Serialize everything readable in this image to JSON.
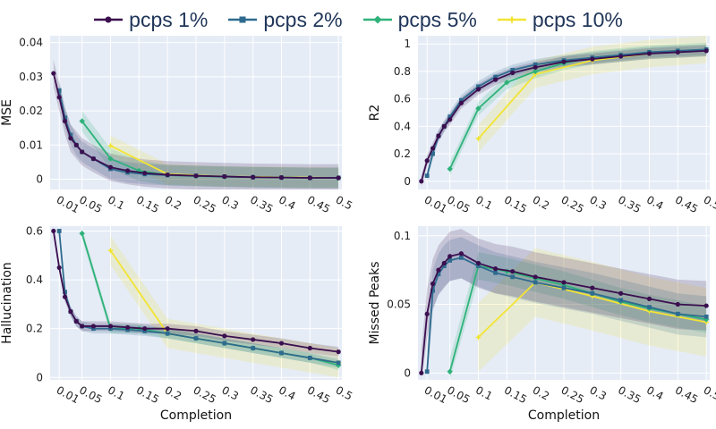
{
  "legend": {
    "items": [
      {
        "label": "pcps 1%",
        "color": "#3b0f4f"
      },
      {
        "label": "pcps 2%",
        "color": "#2f6b8f"
      },
      {
        "label": "pcps 5%",
        "color": "#2fb27a"
      },
      {
        "label": "pcps 10%",
        "color": "#f2e434"
      }
    ]
  },
  "chart_data": [
    {
      "type": "line",
      "ylabel": "MSE",
      "xlabel": "",
      "ylim": [
        -0.003,
        0.042
      ],
      "yticks": [
        "0",
        "0.01",
        "0.02",
        "0.03",
        "0.04"
      ],
      "ytick_values": [
        0,
        0.01,
        0.02,
        0.03,
        0.04
      ],
      "xtick_labels": [
        "0.01",
        "0.05",
        "0.1",
        "0.15",
        "0.2",
        "0.25",
        "0.3",
        "0.35",
        "0.4",
        "0.45",
        "0.5"
      ],
      "xtick_values": [
        0.01,
        0.05,
        0.1,
        0.15,
        0.2,
        0.25,
        0.3,
        0.35,
        0.4,
        0.45,
        0.5
      ],
      "series": [
        {
          "name": "pcps 1%",
          "x": [
            0,
            0.01,
            0.02,
            0.03,
            0.04,
            0.05,
            0.07,
            0.1,
            0.13,
            0.16,
            0.2,
            0.25,
            0.3,
            0.35,
            0.4,
            0.45,
            0.5
          ],
          "values": [
            0.031,
            0.024,
            0.017,
            0.012,
            0.01,
            0.008,
            0.006,
            0.0035,
            0.0025,
            0.0018,
            0.0013,
            0.001,
            0.0008,
            0.0006,
            0.0005,
            0.0004,
            0.0004
          ],
          "band": 0.004
        },
        {
          "name": "pcps 2%",
          "x": [
            0.01,
            0.02,
            0.03,
            0.04,
            0.05,
            0.07,
            0.1,
            0.13,
            0.16,
            0.2,
            0.25,
            0.3,
            0.35,
            0.4,
            0.45,
            0.5
          ],
          "values": [
            0.026,
            0.018,
            0.013,
            0.01,
            0.008,
            0.006,
            0.003,
            0.002,
            0.0015,
            0.0012,
            0.001,
            0.0008,
            0.0006,
            0.0005,
            0.0004,
            0.0004
          ],
          "band": 0.003
        },
        {
          "name": "pcps 5%",
          "x": [
            0.05,
            0.1,
            0.15,
            0.2,
            0.25,
            0.3,
            0.35,
            0.4,
            0.45,
            0.5
          ],
          "values": [
            0.017,
            0.006,
            0.0025,
            0.0012,
            0.0009,
            0.0007,
            0.0006,
            0.0005,
            0.0004,
            0.0004
          ],
          "band": 0.003
        },
        {
          "name": "pcps 10%",
          "x": [
            0.1,
            0.2,
            0.3,
            0.4,
            0.5
          ],
          "values": [
            0.0098,
            0.0015,
            0.0008,
            0.0006,
            0.0004
          ],
          "band": 0.003
        }
      ]
    },
    {
      "type": "line",
      "ylabel": "R2",
      "xlabel": "",
      "ylim": [
        -0.06,
        1.06
      ],
      "yticks": [
        "0",
        "0.2",
        "0.4",
        "0.6",
        "0.8",
        "1"
      ],
      "ytick_values": [
        0,
        0.2,
        0.4,
        0.6,
        0.8,
        1
      ],
      "xtick_labels": [
        "0.01",
        "0.05",
        "0.1",
        "0.15",
        "0.2",
        "0.25",
        "0.3",
        "0.35",
        "0.4",
        "0.45",
        "0.5"
      ],
      "xtick_values": [
        0.01,
        0.05,
        0.1,
        0.15,
        0.2,
        0.25,
        0.3,
        0.35,
        0.4,
        0.45,
        0.5
      ],
      "series": [
        {
          "name": "pcps 1%",
          "x": [
            0,
            0.01,
            0.02,
            0.03,
            0.04,
            0.05,
            0.07,
            0.1,
            0.13,
            0.16,
            0.2,
            0.25,
            0.3,
            0.35,
            0.4,
            0.45,
            0.5
          ],
          "values": [
            0,
            0.15,
            0.24,
            0.33,
            0.4,
            0.45,
            0.57,
            0.67,
            0.74,
            0.79,
            0.83,
            0.87,
            0.89,
            0.91,
            0.93,
            0.94,
            0.95
          ],
          "band": 0.04
        },
        {
          "name": "pcps 2%",
          "x": [
            0.01,
            0.02,
            0.03,
            0.04,
            0.05,
            0.07,
            0.1,
            0.13,
            0.16,
            0.2,
            0.25,
            0.3,
            0.35,
            0.4,
            0.45,
            0.5
          ],
          "values": [
            0.04,
            0.2,
            0.33,
            0.4,
            0.47,
            0.59,
            0.69,
            0.76,
            0.81,
            0.85,
            0.88,
            0.9,
            0.92,
            0.94,
            0.95,
            0.96
          ],
          "band": 0.04
        },
        {
          "name": "pcps 5%",
          "x": [
            0.05,
            0.1,
            0.15,
            0.2,
            0.25,
            0.3,
            0.35,
            0.4,
            0.45,
            0.5
          ],
          "values": [
            0.09,
            0.53,
            0.72,
            0.8,
            0.86,
            0.9,
            0.92,
            0.94,
            0.95,
            0.96
          ],
          "band": 0.05
        },
        {
          "name": "pcps 10%",
          "x": [
            0.1,
            0.2,
            0.3,
            0.4,
            0.5
          ],
          "values": [
            0.31,
            0.78,
            0.88,
            0.93,
            0.96
          ],
          "band": 0.1
        }
      ]
    },
    {
      "type": "line",
      "ylabel": "Hallucination",
      "xlabel": "Completion",
      "ylim": [
        -0.01,
        0.62
      ],
      "yticks": [
        "0",
        "0.2",
        "0.4",
        "0.6"
      ],
      "ytick_values": [
        0,
        0.2,
        0.4,
        0.6
      ],
      "xtick_labels": [
        "0.01",
        "0.05",
        "0.1",
        "0.15",
        "0.2",
        "0.25",
        "0.3",
        "0.35",
        "0.4",
        "0.45",
        "0.5"
      ],
      "xtick_values": [
        0.01,
        0.05,
        0.1,
        0.15,
        0.2,
        0.25,
        0.3,
        0.35,
        0.4,
        0.45,
        0.5
      ],
      "series": [
        {
          "name": "pcps 1%",
          "x": [
            0,
            0.01,
            0.02,
            0.03,
            0.04,
            0.05,
            0.07,
            0.1,
            0.13,
            0.16,
            0.2,
            0.25,
            0.3,
            0.35,
            0.4,
            0.45,
            0.5
          ],
          "values": [
            0.6,
            0.45,
            0.33,
            0.27,
            0.23,
            0.21,
            0.21,
            0.21,
            0.205,
            0.2,
            0.2,
            0.19,
            0.17,
            0.155,
            0.14,
            0.12,
            0.105
          ],
          "band": 0.02
        },
        {
          "name": "pcps 2%",
          "x": [
            0.01,
            0.02,
            0.03,
            0.04,
            0.05,
            0.07,
            0.1,
            0.13,
            0.16,
            0.2,
            0.25,
            0.3,
            0.35,
            0.4,
            0.45,
            0.5
          ],
          "values": [
            0.6,
            0.35,
            0.27,
            0.23,
            0.21,
            0.2,
            0.2,
            0.195,
            0.19,
            0.18,
            0.16,
            0.14,
            0.12,
            0.1,
            0.08,
            0.06
          ],
          "band": 0.02
        },
        {
          "name": "pcps 5%",
          "x": [
            0.05,
            0.1,
            0.15,
            0.2,
            0.25,
            0.3,
            0.35,
            0.4,
            0.45,
            0.5
          ],
          "values": [
            0.59,
            0.2,
            0.2,
            0.18,
            0.16,
            0.14,
            0.12,
            0.1,
            0.08,
            0.05
          ],
          "band": 0.02
        },
        {
          "name": "pcps 10%",
          "x": [
            0.1,
            0.2,
            0.3,
            0.4,
            0.5
          ],
          "values": [
            0.52,
            0.18,
            0.14,
            0.1,
            0.06
          ],
          "band": 0.06
        }
      ]
    },
    {
      "type": "line",
      "ylabel": "Missed Peaks",
      "xlabel": "Completion",
      "ylim": [
        -0.005,
        0.107
      ],
      "yticks": [
        "0",
        "0.05",
        "0.1"
      ],
      "ytick_values": [
        0,
        0.05,
        0.1
      ],
      "xtick_labels": [
        "0.01",
        "0.05",
        "0.1",
        "0.15",
        "0.2",
        "0.25",
        "0.3",
        "0.35",
        "0.4",
        "0.45",
        "0.5"
      ],
      "xtick_values": [
        0.01,
        0.05,
        0.1,
        0.15,
        0.2,
        0.25,
        0.3,
        0.35,
        0.4,
        0.45,
        0.5
      ],
      "series": [
        {
          "name": "pcps 1%",
          "x": [
            0,
            0.01,
            0.02,
            0.03,
            0.04,
            0.05,
            0.07,
            0.1,
            0.13,
            0.16,
            0.2,
            0.25,
            0.3,
            0.35,
            0.4,
            0.45,
            0.5
          ],
          "values": [
            0,
            0.043,
            0.065,
            0.075,
            0.08,
            0.085,
            0.087,
            0.08,
            0.076,
            0.074,
            0.07,
            0.066,
            0.062,
            0.058,
            0.054,
            0.05,
            0.049
          ],
          "band": 0.018
        },
        {
          "name": "pcps 2%",
          "x": [
            0.01,
            0.02,
            0.03,
            0.04,
            0.05,
            0.07,
            0.1,
            0.13,
            0.16,
            0.2,
            0.25,
            0.3,
            0.35,
            0.4,
            0.45,
            0.5
          ],
          "values": [
            0.001,
            0.06,
            0.072,
            0.078,
            0.082,
            0.084,
            0.078,
            0.073,
            0.07,
            0.066,
            0.062,
            0.058,
            0.053,
            0.048,
            0.043,
            0.041
          ],
          "band": 0.015
        },
        {
          "name": "pcps 5%",
          "x": [
            0.05,
            0.1,
            0.15,
            0.2,
            0.25,
            0.3,
            0.35,
            0.4,
            0.45,
            0.5
          ],
          "values": [
            0.001,
            0.078,
            0.074,
            0.069,
            0.064,
            0.058,
            0.052,
            0.047,
            0.043,
            0.039
          ],
          "band": 0.01
        },
        {
          "name": "pcps 10%",
          "x": [
            0.1,
            0.2,
            0.3,
            0.4,
            0.5
          ],
          "values": [
            0.026,
            0.066,
            0.056,
            0.045,
            0.037
          ],
          "band": 0.025
        }
      ]
    }
  ]
}
